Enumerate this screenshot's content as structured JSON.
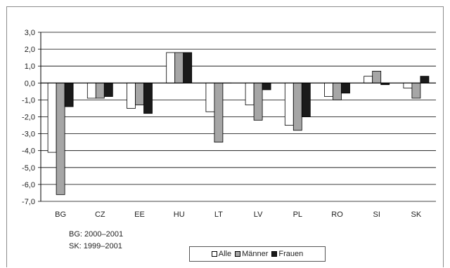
{
  "chart_data": {
    "type": "bar",
    "categories": [
      "BG",
      "CZ",
      "EE",
      "HU",
      "LT",
      "LV",
      "PL",
      "RO",
      "SI",
      "SK"
    ],
    "series": [
      {
        "name": "Alle",
        "color": "#ffffff",
        "values": [
          -4.1,
          -0.9,
          -1.5,
          1.8,
          -1.7,
          -1.3,
          -2.5,
          -0.8,
          0.4,
          -0.3
        ]
      },
      {
        "name": "Männer",
        "color": "#a6a6a6",
        "values": [
          -6.6,
          -0.9,
          -1.3,
          1.8,
          -3.5,
          -2.2,
          -2.8,
          -1.0,
          0.7,
          -0.9
        ]
      },
      {
        "name": "Frauen",
        "color": "#1a1a1a",
        "values": [
          -1.4,
          -0.8,
          -1.8,
          1.8,
          0.0,
          -0.4,
          -2.0,
          -0.6,
          -0.1,
          0.4
        ]
      }
    ],
    "ylim": [
      -7.0,
      3.0
    ],
    "yticks": [
      "3,0",
      "2,0",
      "1,0",
      "0,0",
      "-1,0",
      "-2,0",
      "-3,0",
      "-4,0",
      "-5,0",
      "-6,0",
      "-7,0"
    ],
    "grid": true,
    "legend_position": "bottom-center"
  },
  "notes": [
    "BG: 2000–2001",
    "SK: 1999–2001"
  ]
}
